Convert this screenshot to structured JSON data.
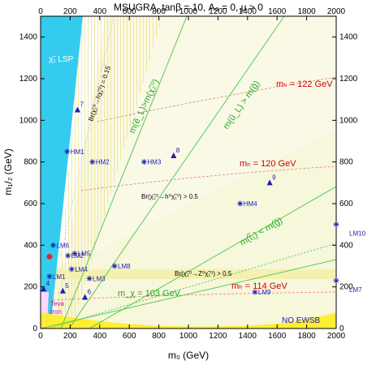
{
  "chart_data": {
    "type": "scatter",
    "title": "MSUGRA, tanβ = 10, A₀ = 0, μ > 0",
    "xlabel": "m₀ (GeV)",
    "ylabel": "m₁/₂ (GeV)",
    "xlim": [
      0,
      2000
    ],
    "ylim": [
      0,
      1500
    ],
    "x_ticks": [
      "0",
      "200",
      "400",
      "600",
      "800",
      "1000",
      "1200",
      "1400",
      "1600",
      "1800",
      "2000"
    ],
    "y_ticks": [
      "0",
      "200",
      "400",
      "600",
      "800",
      "1000",
      "1200",
      "1400"
    ],
    "colors": {
      "lsp": "#33ccee",
      "ewsb": "#ffee33",
      "band": "#f0f0c0",
      "green": "#55cc55",
      "red": "#d40000",
      "points": "#1b1bb0"
    },
    "benchmarks": [
      {
        "label": "LM1",
        "x": 60,
        "y": 250,
        "marker": "star"
      },
      {
        "label": "LM2",
        "x": 185,
        "y": 350,
        "marker": "star"
      },
      {
        "label": "LM3",
        "x": 330,
        "y": 240,
        "marker": "star"
      },
      {
        "label": "LM4",
        "x": 210,
        "y": 285,
        "marker": "star"
      },
      {
        "label": "LM5",
        "x": 230,
        "y": 360,
        "marker": "star"
      },
      {
        "label": "LM6",
        "x": 85,
        "y": 400,
        "marker": "star"
      },
      {
        "label": "LM7",
        "x": 2000,
        "y": 230,
        "marker": "star"
      },
      {
        "label": "LM8",
        "x": 500,
        "y": 300,
        "marker": "star"
      },
      {
        "label": "LM9",
        "x": 1450,
        "y": 175,
        "marker": "star"
      },
      {
        "label": "LM10",
        "x": 2000,
        "y": 500,
        "marker": "star"
      },
      {
        "label": "HM1",
        "x": 180,
        "y": 850,
        "marker": "star"
      },
      {
        "label": "HM2",
        "x": 350,
        "y": 800,
        "marker": "star"
      },
      {
        "label": "HM3",
        "x": 700,
        "y": 800,
        "marker": "star"
      },
      {
        "label": "HM4",
        "x": 1350,
        "y": 600,
        "marker": "star"
      },
      {
        "label": "4",
        "x": 20,
        "y": 190,
        "marker": "triangle"
      },
      {
        "label": "5",
        "x": 150,
        "y": 180,
        "marker": "triangle"
      },
      {
        "label": "6",
        "x": 300,
        "y": 150,
        "marker": "triangle"
      },
      {
        "label": "7",
        "x": 250,
        "y": 1050,
        "marker": "triangle"
      },
      {
        "label": "8",
        "x": 900,
        "y": 830,
        "marker": "triangle"
      },
      {
        "label": "9",
        "x": 1550,
        "y": 700,
        "marker": "triangle"
      }
    ],
    "special_point": {
      "x": 60,
      "y": 345,
      "color": "#ee2222"
    },
    "annotations": {
      "lsp": "χ̃₁ LSP",
      "no_ewsb": "NO EWSB",
      "tevatron_1": "Teva",
      "tevatron_2": "tron",
      "br_a": "Br(χ̃₂⁰→hχ̃₁⁰) = 0.15",
      "br_b": "Br(χ̃₂⁰→h⁰χ̃₁⁰) > 0.5",
      "br_c": "Br(χ̃₂⁰→Z⁰χ̃₁⁰) > 0.5",
      "mh122": "mₕ = 122 GeV",
      "mh120": "mₕ = 120 GeV",
      "mh114": "mₕ = 114 GeV",
      "mchi103": "m_χ = 103 GeV",
      "line_a": "m(ẽ_L)>m(χ̃₂⁰)",
      "line_b": "m(ũ_L) > m(g̃)",
      "line_c": "m(t̃₁) < m(g̃)"
    }
  }
}
